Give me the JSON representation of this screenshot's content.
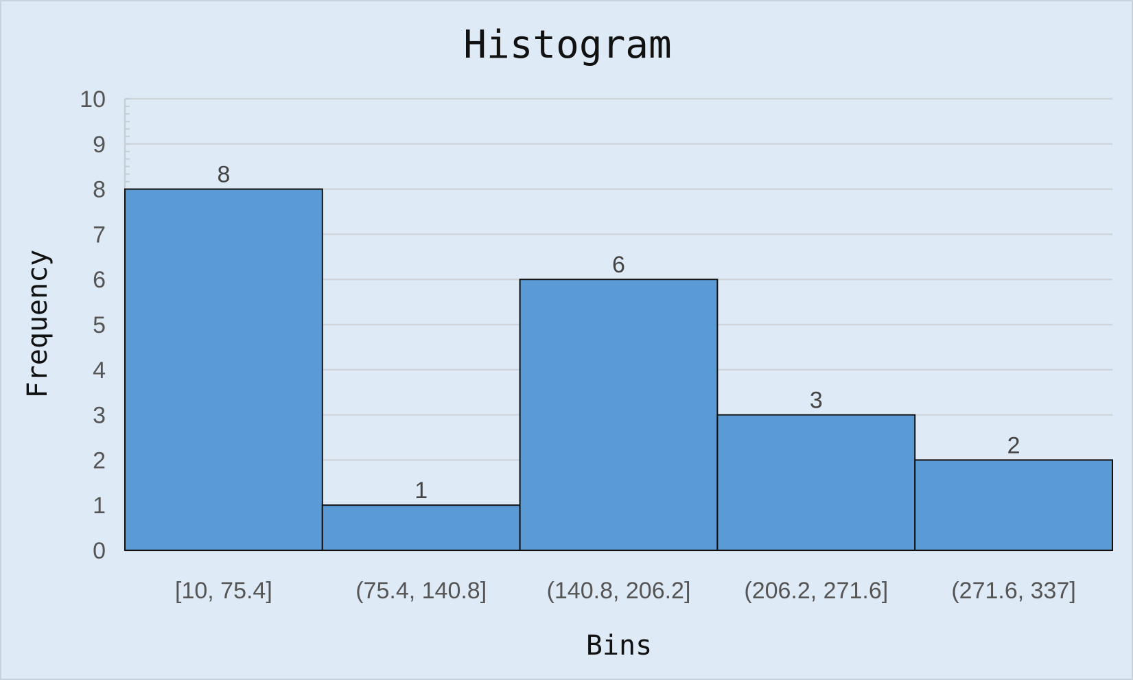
{
  "chart_data": {
    "type": "bar",
    "title": "Histogram",
    "xlabel": "Bins",
    "ylabel": "Frequency",
    "categories": [
      "[10, 75.4]",
      "(75.4, 140.8]",
      "(140.8, 206.2]",
      "(206.2, 271.6]",
      "(271.6, 337]"
    ],
    "values": [
      8,
      1,
      6,
      3,
      2
    ],
    "ylim": [
      0,
      10
    ],
    "yticks": [
      0,
      1,
      2,
      3,
      4,
      5,
      6,
      7,
      8,
      9,
      10
    ],
    "grid": true,
    "data_labels": true,
    "colors": {
      "bar_fill": "#5b9bd5",
      "bar_stroke": "#111111",
      "grid": "#cfd5db",
      "background": "#deeaf5"
    }
  }
}
